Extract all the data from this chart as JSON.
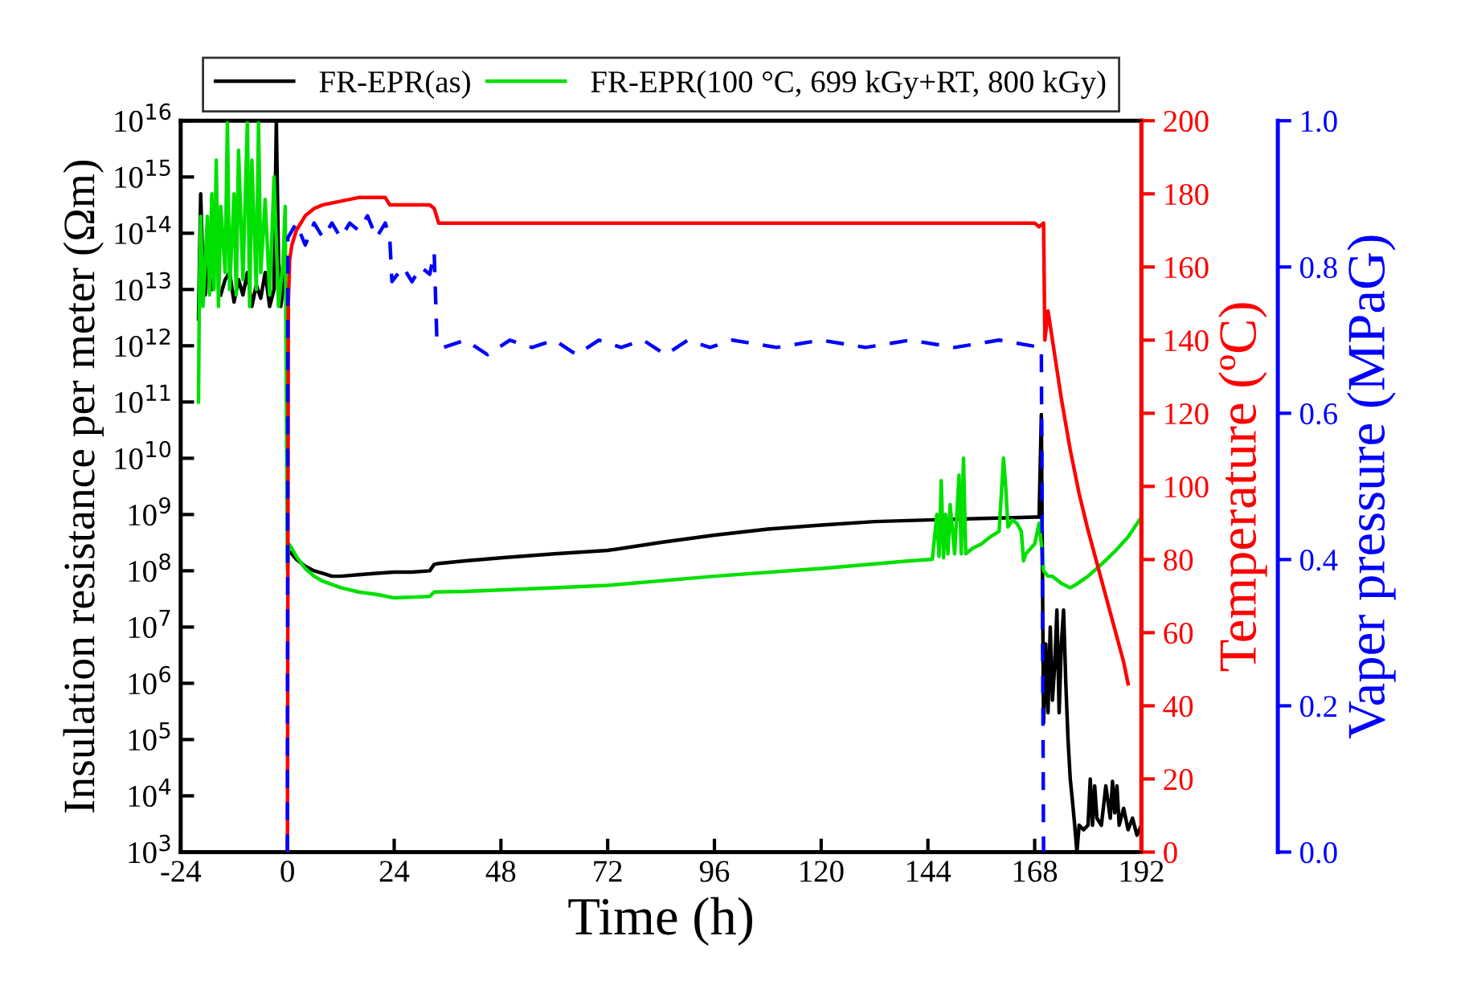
{
  "chart_data": {
    "type": "line",
    "xlabel": "Time (h)",
    "ylabel": "Insulation resistance per meter (Ωm)",
    "y2label": "Temperature (ºC)",
    "y3label": "Vaper pressure (MPaG)",
    "log": "y",
    "legend": "top",
    "grid": false,
    "marker": "none",
    "xlim": [
      -24,
      192
    ],
    "xticks": [
      -24,
      0,
      24,
      48,
      72,
      96,
      120,
      144,
      168,
      192
    ],
    "ylim": [
      1000,
      1e+16
    ],
    "yticks": [
      {
        "value": 1000,
        "label": "10$^{3}$"
      },
      {
        "value": 10000.0,
        "label": "10$^{4}$"
      },
      {
        "value": 100000.0,
        "label": "10$^{5}$"
      },
      {
        "value": 1000000.0,
        "label": "10$^{6}$"
      },
      {
        "value": 10000000.0,
        "label": "10$^{7}$"
      },
      {
        "value": 100000000.0,
        "label": "10$^{8}$"
      },
      {
        "value": 1000000000.0,
        "label": "10$^{9}$"
      },
      {
        "value": 10000000000.0,
        "label": "10$^{10}$"
      },
      {
        "value": 100000000000.0,
        "label": "10$^{11}$"
      },
      {
        "value": 1000000000000.0,
        "label": "10$^{12}$"
      },
      {
        "value": 10000000000000.0,
        "label": "10$^{13}$"
      },
      {
        "value": 100000000000000.0,
        "label": "10$^{14}$"
      },
      {
        "value": 1000000000000000.0,
        "label": "10$^{15}$"
      },
      {
        "value": 1e+16,
        "label": "10$^{16}$"
      }
    ],
    "y2lim": [
      0,
      200
    ],
    "y2ticks": [
      0,
      20,
      40,
      60,
      80,
      100,
      120,
      140,
      160,
      180,
      200
    ],
    "y3lim": [
      0,
      1.0
    ],
    "y3ticks": [
      {
        "value": 0,
        "label": "0.0"
      },
      {
        "value": 0.2,
        "label": "0.2"
      },
      {
        "value": 0.4,
        "label": "0.4"
      },
      {
        "value": 0.6,
        "label": "0.6"
      },
      {
        "value": 0.8,
        "label": "0.8"
      },
      {
        "value": 1.0,
        "label": "1.0"
      }
    ],
    "series": [
      {
        "name": "FR-EPR(as)",
        "color": "#000000",
        "line_style": "solid",
        "x": [
          -20,
          -19.5,
          -19,
          -18.5,
          -18,
          -17,
          -16,
          -15,
          -14,
          -13,
          -12,
          -11,
          -10,
          -9,
          -8,
          -7,
          -6,
          -5,
          -4,
          -3,
          -2.5,
          -2,
          -1.5,
          -1,
          -0.5,
          0,
          0.3,
          1,
          2,
          4,
          6,
          8,
          10,
          12,
          16,
          20,
          24,
          28,
          32,
          33,
          34,
          40,
          48,
          60,
          72,
          84,
          96,
          108,
          120,
          132,
          144,
          156,
          168,
          169,
          169.5,
          170,
          170.5,
          171,
          171.5,
          172,
          172.5,
          173,
          173.5,
          174,
          174.5,
          175,
          175.5,
          176,
          176.5,
          177,
          177.5,
          178,
          179,
          180,
          180.5,
          181,
          181.5,
          182,
          183,
          184,
          185,
          185.5,
          186,
          186.5,
          187,
          188,
          189,
          190,
          191,
          192
        ],
        "values": [
          3000000000000.0,
          500000000000000.0,
          20000000000000.0,
          8000000000000.0,
          30000000000000.0,
          10000000000000.0,
          null,
          8000000000000.0,
          15000000000000.0,
          20000000000000.0,
          6000000000000.0,
          15000000000000.0,
          8000000000000.0,
          20000000000000.0,
          5000000000000.0,
          12000000000000.0,
          7000000000000.0,
          20000000000000.0,
          5000000000000.0,
          10000000000000.0,
          1e+16,
          30000000000000.0,
          5000000000000.0,
          10000000000000.0,
          20000000000000.0,
          null,
          220000000.0,
          200000000.0,
          160000000.0,
          120000000.0,
          100000000.0,
          90000000.0,
          80000000.0,
          80000000.0,
          85000000.0,
          90000000.0,
          95000000.0,
          95000000.0,
          100000000.0,
          130000000.0,
          135000000.0,
          150000000.0,
          170000000.0,
          200000000.0,
          230000000.0,
          320000000.0,
          430000000.0,
          550000000.0,
          650000000.0,
          750000000.0,
          800000000.0,
          850000000.0,
          900000000.0,
          900000000.0,
          60000000000.0,
          200000.0,
          5000000.0,
          300000.0,
          10000000.0,
          500000.0,
          2000000.0,
          20000000.0,
          300000.0,
          5000000.0,
          20000000.0,
          1000000.0,
          100000.0,
          20000.0,
          8000.0,
          3000.0,
          1000.0,
          3000.0,
          2500.0,
          3000.0,
          20000.0,
          3000.0,
          15000.0,
          4000.0,
          3000.0,
          15000.0,
          4000.0,
          18000.0,
          5000.0,
          15000.0,
          3000.0,
          6000.0,
          2500.0,
          4000.0,
          2000.0,
          3000.0
        ]
      },
      {
        "name": "FR-EPR(100 °C, 699 kGy+RT, 800 kGy)",
        "color": "#00e000",
        "line_style": "solid",
        "x": [
          -20,
          -19.8,
          -19.5,
          -19,
          -18.5,
          -18,
          -17.5,
          -17,
          -16.5,
          -16,
          -15.5,
          -15,
          -14,
          -13.5,
          -13,
          -12,
          -11.5,
          -11,
          -10,
          -9,
          -8.5,
          -8,
          -7,
          -6.5,
          -6,
          -5,
          -4,
          -3,
          -2,
          -1,
          -0.5,
          0,
          0.3,
          1,
          2,
          4,
          6,
          8,
          12,
          16,
          20,
          24,
          32,
          33,
          40,
          60,
          72,
          96,
          120,
          140,
          145,
          146,
          146.5,
          147,
          147.5,
          148,
          148.5,
          149,
          150,
          151,
          151.5,
          152,
          152.5,
          154,
          156,
          158,
          160,
          161,
          161.5,
          162,
          163,
          164,
          165,
          165.5,
          166,
          168,
          169,
          169.5,
          170,
          171,
          172,
          174,
          176,
          177,
          180,
          183,
          186,
          189,
          192
        ],
        "values": [
          100000000000.0,
          10000000000000.0,
          200000000000000.0,
          5000000000000.0,
          30000000000000.0,
          200000000000000.0,
          8000000000000.0,
          500000000000000.0,
          10000000000000.0,
          2000000000000000.0,
          5000000000000.0,
          300000000000000.0,
          20000000000000.0,
          1e+16,
          10000000000000.0,
          500000000000000.0,
          8000000000000.0,
          3000000000000000.0,
          15000000000000.0,
          1e+16,
          5000000000000.0,
          2000000000000000.0,
          10000000000000.0,
          1e+16,
          20000000000000.0,
          400000000000000.0,
          8000000000000.0,
          1000000000000000.0,
          5000000000000.0,
          30000000000000.0,
          300000000000000.0,
          100000000.0,
          300000000.0,
          250000000.0,
          180000000.0,
          110000000.0,
          80000000.0,
          65000000.0,
          50000000.0,
          42000000.0,
          38000000.0,
          33000000.0,
          35000000.0,
          42000000.0,
          43000000.0,
          50000000.0,
          55000000.0,
          80000000.0,
          110000000.0,
          150000000.0,
          160000000.0,
          1000000000.0,
          180000000.0,
          4000000000.0,
          170000000.0,
          1000000000.0,
          200000000.0,
          1500000000.0,
          200000000.0,
          5000000000.0,
          200000000.0,
          10000000000.0,
          200000000.0,
          250000000.0,
          300000000.0,
          400000000.0,
          500000000.0,
          10000000000.0,
          3000000000.0,
          600000000.0,
          800000000.0,
          700000000.0,
          500000000.0,
          150000000.0,
          200000000.0,
          300000000.0,
          700000000.0,
          300000000.0,
          100000000.0,
          80000000.0,
          80000000.0,
          60000000.0,
          50000000.0,
          55000000.0,
          80000000.0,
          130000000.0,
          220000000.0,
          400000000.0,
          900000000.0
        ]
      },
      {
        "color": "#ff0000",
        "axis": "y2",
        "line_style": "solid",
        "x": [
          0,
          0.2,
          0.5,
          1,
          2,
          4,
          6,
          8,
          12,
          16,
          20,
          22,
          23,
          24,
          30,
          32,
          33,
          34,
          40,
          60,
          80,
          100,
          120,
          140,
          160,
          168,
          169,
          170,
          170.3,
          171,
          172,
          174,
          176,
          178,
          180,
          182,
          184,
          186,
          188,
          189
        ],
        "values": [
          0,
          150,
          162,
          166,
          170,
          174,
          176,
          177,
          178,
          179,
          179,
          179,
          177,
          177,
          177,
          177,
          176,
          172,
          172,
          172,
          172,
          172,
          172,
          172,
          172,
          172,
          171,
          172,
          140,
          148,
          140,
          124,
          110,
          98,
          88,
          79,
          70,
          61,
          52,
          46
        ]
      },
      {
        "color": "#0000ff",
        "axis": "y3",
        "line_style": "dashed",
        "x": [
          0,
          0.1,
          2,
          4,
          6,
          8,
          10,
          12,
          14,
          16,
          18,
          20,
          22,
          23,
          23.5,
          26,
          28,
          30,
          32,
          33,
          33.6,
          35,
          40,
          45,
          50,
          55,
          60,
          65,
          70,
          75,
          80,
          85,
          90,
          95,
          100,
          110,
          120,
          130,
          140,
          150,
          160,
          169.5,
          170
        ],
        "values": [
          0,
          0.84,
          0.86,
          0.83,
          0.86,
          0.84,
          0.86,
          0.84,
          0.86,
          0.85,
          0.87,
          0.84,
          0.86,
          0.84,
          0.78,
          0.8,
          0.78,
          0.8,
          0.79,
          0.82,
          0.7,
          0.69,
          0.7,
          0.68,
          0.7,
          0.69,
          0.7,
          0.68,
          0.7,
          0.69,
          0.7,
          0.68,
          0.7,
          0.69,
          0.7,
          0.69,
          0.7,
          0.69,
          0.7,
          0.69,
          0.7,
          0.69,
          0
        ]
      }
    ]
  }
}
